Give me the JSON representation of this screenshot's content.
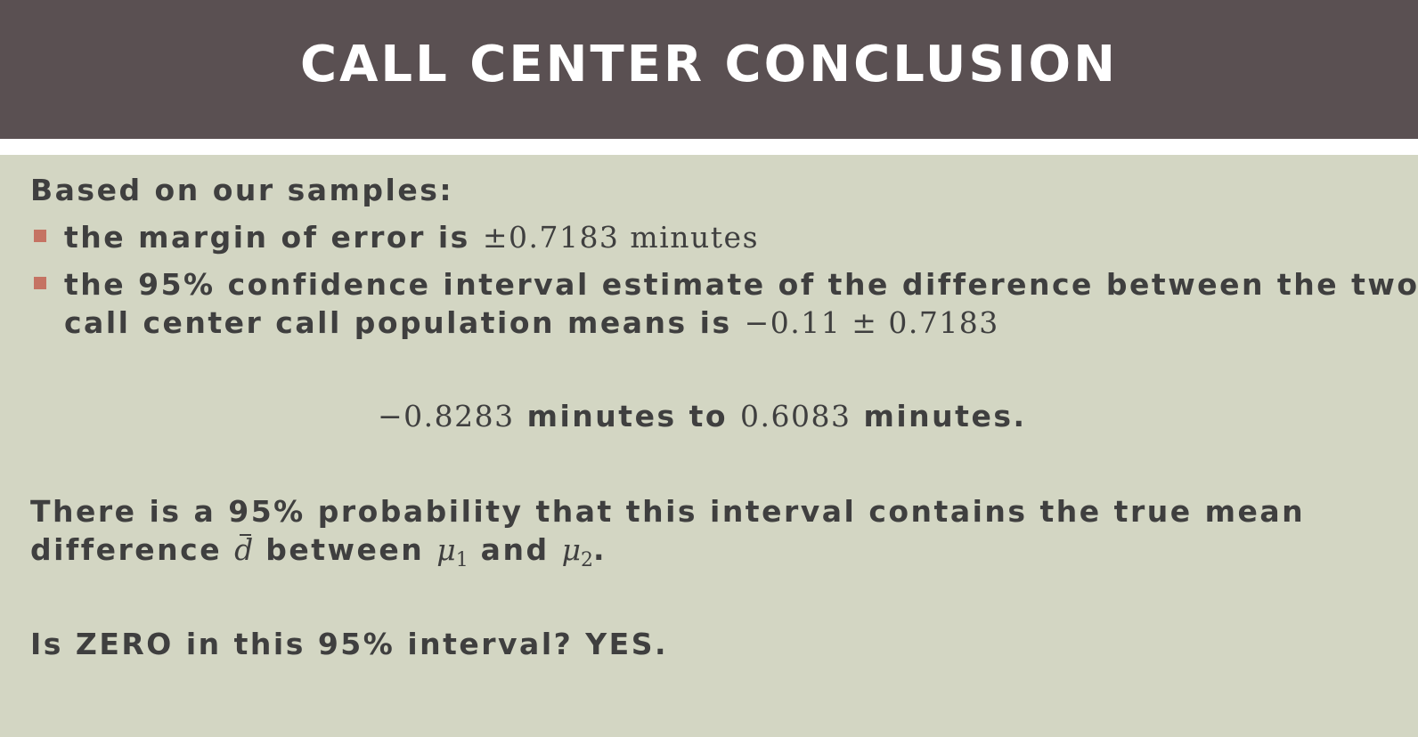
{
  "slide": {
    "title": "CALL CENTER CONCLUSION",
    "intro": "Based on our samples:",
    "bullet1": {
      "text": "the margin of error is ",
      "value": "±0.7183 minutes"
    },
    "bullet2": {
      "line1": "the 95% confidence interval estimate of the difference between the two",
      "line2_text": "call center call population means is ",
      "line2_value": "−0.11 ± 0.7183"
    },
    "interval": {
      "lower": "−0.8283",
      "lower_unit": " minutes to ",
      "upper": "0.6083",
      "upper_unit": " minutes."
    },
    "probability": {
      "line1": "There is a 95% probability that this interval contains the true mean",
      "line2_start": "difference ",
      "d_symbol": "d",
      "between": " between ",
      "mu": "μ",
      "sub1": "1",
      "and": " and ",
      "sub2": "2",
      "end": "."
    },
    "question": "Is ZERO in this 95% interval? YES."
  },
  "colors": {
    "title_bar": "#5a5052",
    "background": "#d3d6c3",
    "text": "#3f3f3f",
    "bullet": "#c57363"
  }
}
